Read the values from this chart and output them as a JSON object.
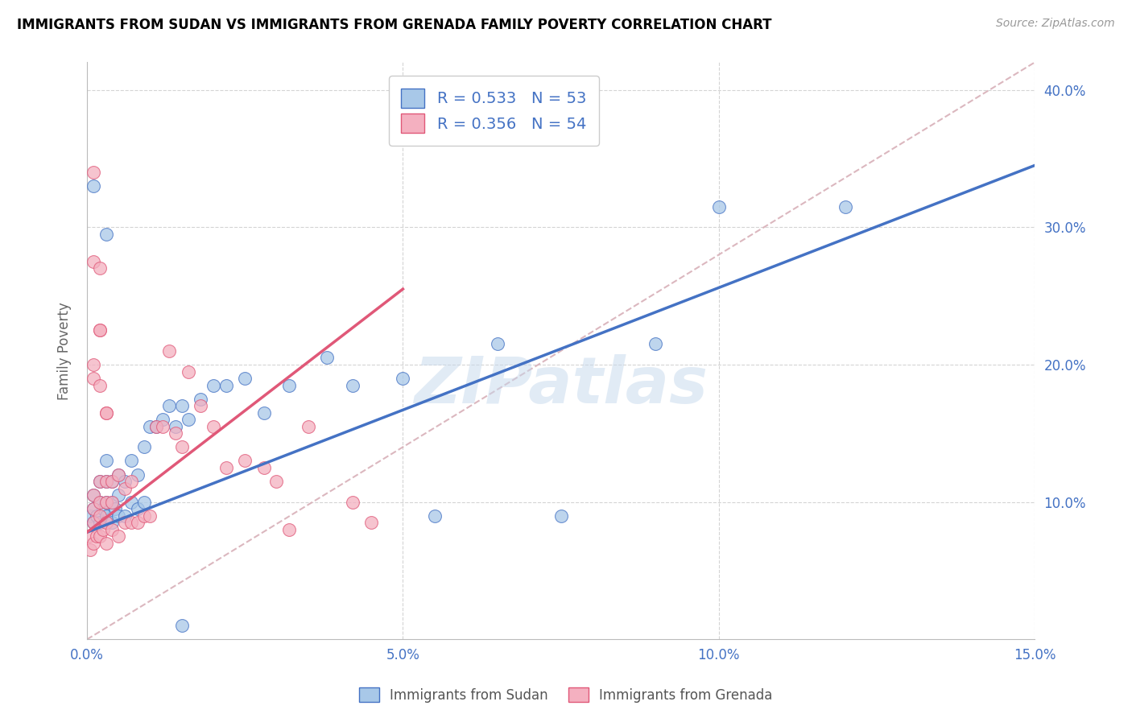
{
  "title": "IMMIGRANTS FROM SUDAN VS IMMIGRANTS FROM GRENADA FAMILY POVERTY CORRELATION CHART",
  "source": "Source: ZipAtlas.com",
  "ylabel": "Family Poverty",
  "xlim": [
    0,
    0.15
  ],
  "ylim": [
    0,
    0.42
  ],
  "xticks": [
    0.0,
    0.05,
    0.1,
    0.15
  ],
  "xticklabels": [
    "0.0%",
    "5.0%",
    "10.0%",
    "15.0%"
  ],
  "ytick_vals": [
    0.1,
    0.2,
    0.3,
    0.4
  ],
  "ytick_labels_right": [
    "10.0%",
    "20.0%",
    "30.0%",
    "40.0%"
  ],
  "sudan_color": "#a8c8e8",
  "grenada_color": "#f4b0c0",
  "line_sudan_color": "#4472c4",
  "line_grenada_color": "#e05878",
  "diag_color": "#d8b0b8",
  "legend_sudan_R": "0.533",
  "legend_sudan_N": "53",
  "legend_grenada_R": "0.356",
  "legend_grenada_N": "54",
  "watermark": "ZIPatlas",
  "sudan_line_x0": 0.0,
  "sudan_line_y0": 0.078,
  "sudan_line_x1": 0.15,
  "sudan_line_y1": 0.345,
  "grenada_line_x0": 0.0,
  "grenada_line_y0": 0.078,
  "grenada_line_x1": 0.05,
  "grenada_line_y1": 0.255,
  "sudan_x": [
    0.0005,
    0.001,
    0.001,
    0.001,
    0.0015,
    0.002,
    0.002,
    0.002,
    0.0025,
    0.003,
    0.003,
    0.003,
    0.003,
    0.004,
    0.004,
    0.004,
    0.0045,
    0.005,
    0.005,
    0.005,
    0.006,
    0.006,
    0.007,
    0.007,
    0.008,
    0.008,
    0.009,
    0.009,
    0.01,
    0.011,
    0.012,
    0.013,
    0.014,
    0.015,
    0.016,
    0.018,
    0.02,
    0.022,
    0.025,
    0.028,
    0.032,
    0.038,
    0.042,
    0.05,
    0.055,
    0.065,
    0.075,
    0.09,
    0.1,
    0.12,
    0.001,
    0.003,
    0.015
  ],
  "sudan_y": [
    0.09,
    0.085,
    0.095,
    0.105,
    0.09,
    0.085,
    0.1,
    0.115,
    0.095,
    0.09,
    0.1,
    0.115,
    0.13,
    0.085,
    0.1,
    0.115,
    0.095,
    0.09,
    0.105,
    0.12,
    0.09,
    0.115,
    0.1,
    0.13,
    0.095,
    0.12,
    0.1,
    0.14,
    0.155,
    0.155,
    0.16,
    0.17,
    0.155,
    0.17,
    0.16,
    0.175,
    0.185,
    0.185,
    0.19,
    0.165,
    0.185,
    0.205,
    0.185,
    0.19,
    0.09,
    0.215,
    0.09,
    0.215,
    0.315,
    0.315,
    0.33,
    0.295,
    0.01
  ],
  "grenada_x": [
    0.0003,
    0.0005,
    0.001,
    0.001,
    0.001,
    0.001,
    0.0015,
    0.002,
    0.002,
    0.002,
    0.002,
    0.0025,
    0.003,
    0.003,
    0.003,
    0.003,
    0.004,
    0.004,
    0.004,
    0.005,
    0.005,
    0.006,
    0.006,
    0.007,
    0.007,
    0.008,
    0.009,
    0.01,
    0.011,
    0.012,
    0.013,
    0.014,
    0.015,
    0.016,
    0.018,
    0.02,
    0.022,
    0.025,
    0.028,
    0.03,
    0.032,
    0.035,
    0.042,
    0.045,
    0.001,
    0.001,
    0.002,
    0.002,
    0.003,
    0.003,
    0.001,
    0.002,
    0.001,
    0.002
  ],
  "grenada_y": [
    0.075,
    0.065,
    0.07,
    0.085,
    0.095,
    0.105,
    0.075,
    0.075,
    0.09,
    0.1,
    0.115,
    0.08,
    0.07,
    0.085,
    0.1,
    0.115,
    0.08,
    0.1,
    0.115,
    0.075,
    0.12,
    0.085,
    0.11,
    0.085,
    0.115,
    0.085,
    0.09,
    0.09,
    0.155,
    0.155,
    0.21,
    0.15,
    0.14,
    0.195,
    0.17,
    0.155,
    0.125,
    0.13,
    0.125,
    0.115,
    0.08,
    0.155,
    0.1,
    0.085,
    0.34,
    0.275,
    0.225,
    0.225,
    0.165,
    0.165,
    0.19,
    0.185,
    0.2,
    0.27
  ]
}
